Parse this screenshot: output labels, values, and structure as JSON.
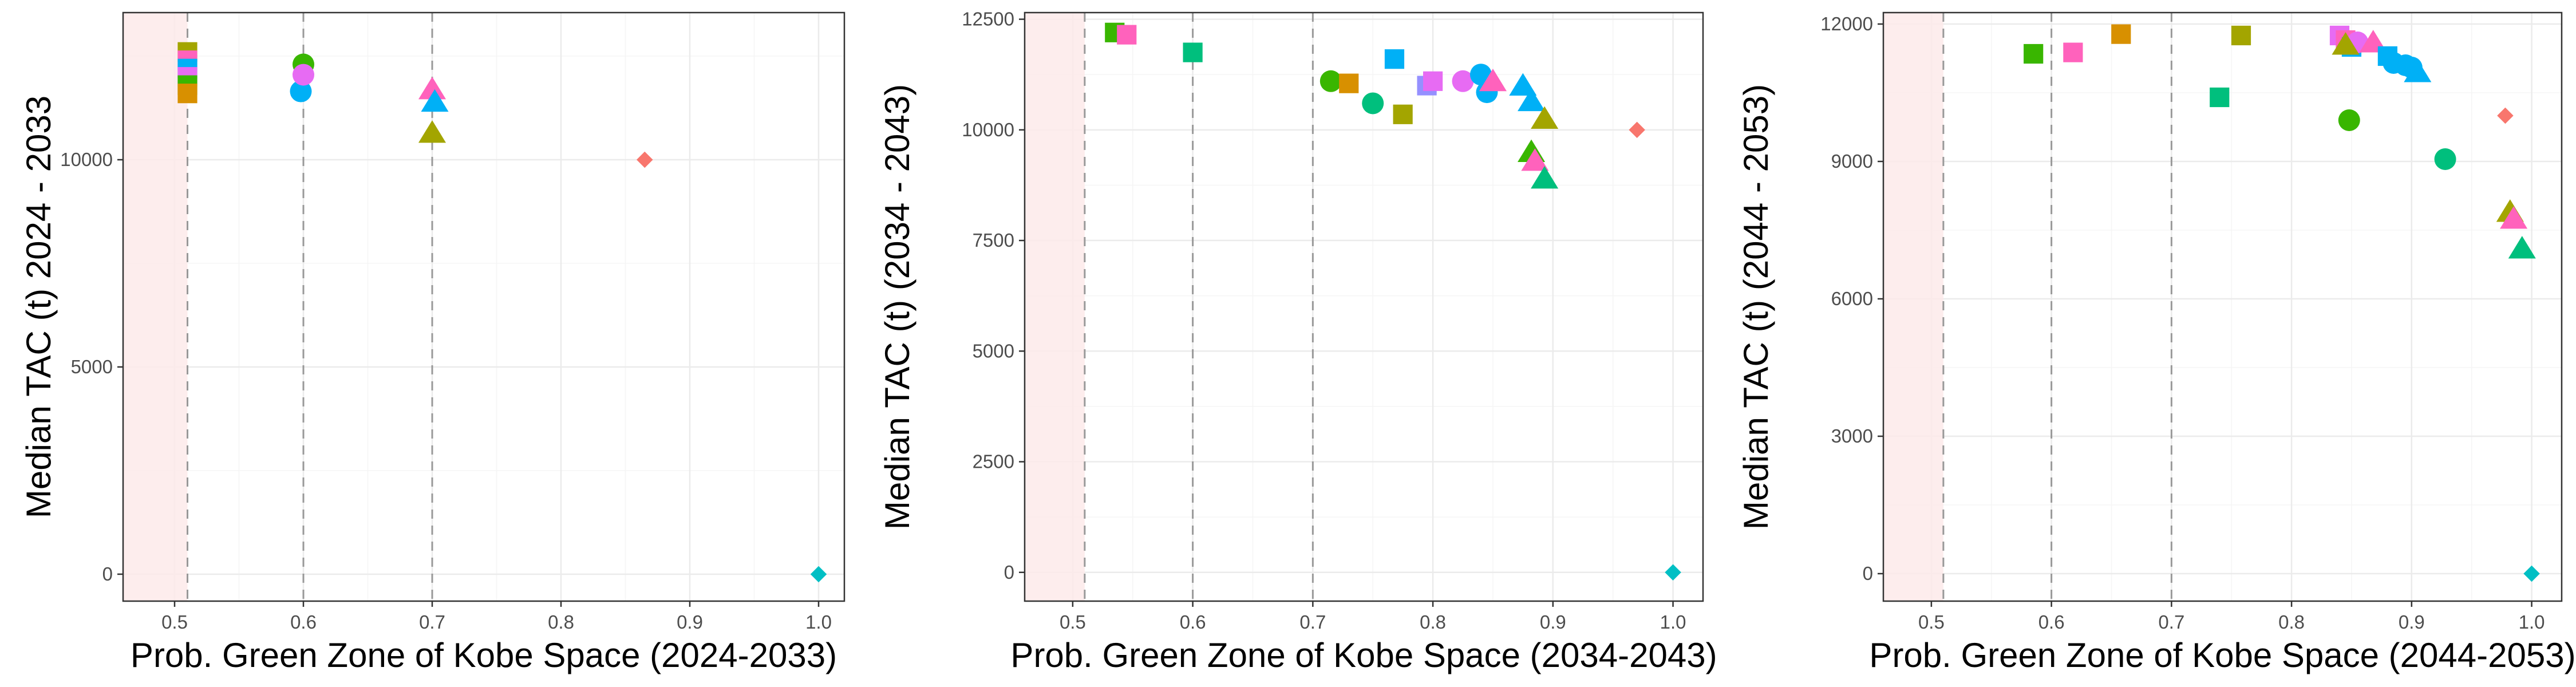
{
  "colors": {
    "red": "#F8766D",
    "orange": "#D89000",
    "olive": "#A3A500",
    "lime": "#39B600",
    "green": "#00BF7D",
    "teal": "#00BFC4",
    "sky": "#00B0F6",
    "blue": "#9590FF",
    "magenta": "#E76BF3",
    "pink": "#FF62BC",
    "shade": "#FDEAEA",
    "vline": "#999999",
    "grid_major": "#EBEBEB",
    "grid_minor": "#F5F5F5",
    "frame": "#333333"
  },
  "chart_data": [
    {
      "type": "scatter",
      "xlabel": "Prob. Green Zone of Kobe Space (2024-2033)",
      "ylabel": "Median TAC (t) 2024 - 2033",
      "xlim": [
        0.46,
        1.02
      ],
      "ylim": [
        -650,
        13550
      ],
      "x_ticks": [
        0.5,
        0.6,
        0.7,
        0.8,
        0.9,
        1.0
      ],
      "x_tick_labels": [
        "0.5",
        "0.6",
        "0.7",
        "0.8",
        "0.9",
        "1.0"
      ],
      "y_ticks": [
        0,
        5000,
        10000
      ],
      "y_tick_labels": [
        "0",
        "5000",
        "10000"
      ],
      "shaded_x_range": [
        0.46,
        0.51
      ],
      "reference_lines_x": [
        0.51,
        0.6,
        0.7
      ],
      "grid": true,
      "points": [
        {
          "x": 0.51,
          "y": 12600,
          "shape": "square",
          "color": "olive"
        },
        {
          "x": 0.51,
          "y": 12400,
          "shape": "square",
          "color": "pink"
        },
        {
          "x": 0.51,
          "y": 12200,
          "shape": "square",
          "color": "sky"
        },
        {
          "x": 0.51,
          "y": 12000,
          "shape": "square",
          "color": "magenta"
        },
        {
          "x": 0.51,
          "y": 11800,
          "shape": "square",
          "color": "lime"
        },
        {
          "x": 0.51,
          "y": 11600,
          "shape": "square",
          "color": "orange"
        },
        {
          "x": 0.6,
          "y": 12300,
          "shape": "circle",
          "color": "lime"
        },
        {
          "x": 0.598,
          "y": 11650,
          "shape": "circle",
          "color": "sky"
        },
        {
          "x": 0.6,
          "y": 12050,
          "shape": "circle",
          "color": "magenta"
        },
        {
          "x": 0.7,
          "y": 11700,
          "shape": "triangle",
          "color": "pink"
        },
        {
          "x": 0.702,
          "y": 11400,
          "shape": "triangle",
          "color": "sky"
        },
        {
          "x": 0.7,
          "y": 10650,
          "shape": "triangle",
          "color": "olive"
        },
        {
          "x": 0.865,
          "y": 10000,
          "shape": "diamond",
          "color": "red"
        },
        {
          "x": 1.0,
          "y": 0,
          "shape": "diamond",
          "color": "teal"
        }
      ]
    },
    {
      "type": "scatter",
      "xlabel": "Prob. Green Zone of Kobe Space (2034-2043)",
      "ylabel": "Median TAC (t) (2034 - 2043)",
      "xlim": [
        0.46,
        1.025
      ],
      "ylim": [
        -650,
        12650
      ],
      "x_ticks": [
        0.5,
        0.6,
        0.7,
        0.8,
        0.9,
        1.0
      ],
      "x_tick_labels": [
        "0.5",
        "0.6",
        "0.7",
        "0.8",
        "0.9",
        "1.0"
      ],
      "y_ticks": [
        0,
        2500,
        5000,
        7500,
        10000,
        12500
      ],
      "y_tick_labels": [
        "0",
        "2500",
        "5000",
        "7500",
        "10000",
        "12500"
      ],
      "shaded_x_range": [
        0.46,
        0.51
      ],
      "reference_lines_x": [
        0.51,
        0.6,
        0.7
      ],
      "grid": true,
      "points": [
        {
          "x": 0.535,
          "y": 12200,
          "shape": "square",
          "color": "lime"
        },
        {
          "x": 0.545,
          "y": 12150,
          "shape": "square",
          "color": "pink"
        },
        {
          "x": 0.6,
          "y": 11750,
          "shape": "square",
          "color": "green"
        },
        {
          "x": 0.715,
          "y": 11100,
          "shape": "circle",
          "color": "lime"
        },
        {
          "x": 0.73,
          "y": 11050,
          "shape": "square",
          "color": "orange"
        },
        {
          "x": 0.75,
          "y": 10600,
          "shape": "circle",
          "color": "green"
        },
        {
          "x": 0.768,
          "y": 11600,
          "shape": "square",
          "color": "sky"
        },
        {
          "x": 0.775,
          "y": 10350,
          "shape": "square",
          "color": "olive"
        },
        {
          "x": 0.795,
          "y": 11000,
          "shape": "square",
          "color": "blue"
        },
        {
          "x": 0.8,
          "y": 11100,
          "shape": "square",
          "color": "magenta"
        },
        {
          "x": 0.825,
          "y": 11100,
          "shape": "circle",
          "color": "magenta"
        },
        {
          "x": 0.84,
          "y": 11250,
          "shape": "circle",
          "color": "sky"
        },
        {
          "x": 0.845,
          "y": 10850,
          "shape": "circle",
          "color": "sky"
        },
        {
          "x": 0.85,
          "y": 11100,
          "shape": "triangle",
          "color": "pink"
        },
        {
          "x": 0.875,
          "y": 11000,
          "shape": "triangle",
          "color": "sky"
        },
        {
          "x": 0.882,
          "y": 10650,
          "shape": "triangle",
          "color": "sky"
        },
        {
          "x": 0.893,
          "y": 10250,
          "shape": "triangle",
          "color": "olive"
        },
        {
          "x": 0.882,
          "y": 9500,
          "shape": "triangle",
          "color": "lime"
        },
        {
          "x": 0.885,
          "y": 9300,
          "shape": "triangle",
          "color": "pink"
        },
        {
          "x": 0.893,
          "y": 8900,
          "shape": "triangle",
          "color": "green"
        },
        {
          "x": 0.97,
          "y": 10000,
          "shape": "diamond",
          "color": "red"
        },
        {
          "x": 1.0,
          "y": 0,
          "shape": "diamond",
          "color": "teal"
        }
      ]
    },
    {
      "type": "scatter",
      "xlabel": "Prob. Green Zone of Kobe Space (2044-2053)",
      "ylabel": "Median TAC (t) (2044 - 2053)",
      "xlim": [
        0.46,
        1.025
      ],
      "ylim": [
        -600,
        12250
      ],
      "x_ticks": [
        0.5,
        0.6,
        0.7,
        0.8,
        0.9,
        1.0
      ],
      "x_tick_labels": [
        "0.5",
        "0.6",
        "0.7",
        "0.8",
        "0.9",
        "1.0"
      ],
      "y_ticks": [
        0,
        3000,
        6000,
        9000,
        12000
      ],
      "y_tick_labels": [
        "0",
        "3000",
        "6000",
        "9000",
        "12000"
      ],
      "shaded_x_range": [
        0.46,
        0.51
      ],
      "reference_lines_x": [
        0.51,
        0.6,
        0.7
      ],
      "grid": true,
      "points": [
        {
          "x": 0.585,
          "y": 11350,
          "shape": "square",
          "color": "lime"
        },
        {
          "x": 0.618,
          "y": 11380,
          "shape": "square",
          "color": "pink"
        },
        {
          "x": 0.658,
          "y": 11780,
          "shape": "square",
          "color": "orange"
        },
        {
          "x": 0.74,
          "y": 10400,
          "shape": "square",
          "color": "green"
        },
        {
          "x": 0.758,
          "y": 11750,
          "shape": "square",
          "color": "olive"
        },
        {
          "x": 0.84,
          "y": 11750,
          "shape": "square",
          "color": "magenta"
        },
        {
          "x": 0.845,
          "y": 11650,
          "shape": "square",
          "color": "pink"
        },
        {
          "x": 0.85,
          "y": 11500,
          "shape": "square",
          "color": "sky"
        },
        {
          "x": 0.848,
          "y": 9900,
          "shape": "circle",
          "color": "lime"
        },
        {
          "x": 0.855,
          "y": 11600,
          "shape": "circle",
          "color": "magenta"
        },
        {
          "x": 0.845,
          "y": 11550,
          "shape": "triangle",
          "color": "olive"
        },
        {
          "x": 0.868,
          "y": 11600,
          "shape": "triangle",
          "color": "pink"
        },
        {
          "x": 0.88,
          "y": 11300,
          "shape": "square",
          "color": "sky"
        },
        {
          "x": 0.885,
          "y": 11150,
          "shape": "circle",
          "color": "sky"
        },
        {
          "x": 0.895,
          "y": 11100,
          "shape": "circle",
          "color": "sky"
        },
        {
          "x": 0.9,
          "y": 11050,
          "shape": "circle",
          "color": "sky"
        },
        {
          "x": 0.905,
          "y": 10950,
          "shape": "triangle",
          "color": "sky"
        },
        {
          "x": 0.928,
          "y": 9050,
          "shape": "circle",
          "color": "green"
        },
        {
          "x": 0.978,
          "y": 10000,
          "shape": "diamond",
          "color": "red"
        },
        {
          "x": 0.982,
          "y": 7900,
          "shape": "triangle",
          "color": "olive"
        },
        {
          "x": 0.985,
          "y": 7750,
          "shape": "triangle",
          "color": "pink"
        },
        {
          "x": 0.992,
          "y": 7100,
          "shape": "triangle",
          "color": "green"
        },
        {
          "x": 1.0,
          "y": 0,
          "shape": "diamond",
          "color": "teal"
        }
      ]
    }
  ]
}
